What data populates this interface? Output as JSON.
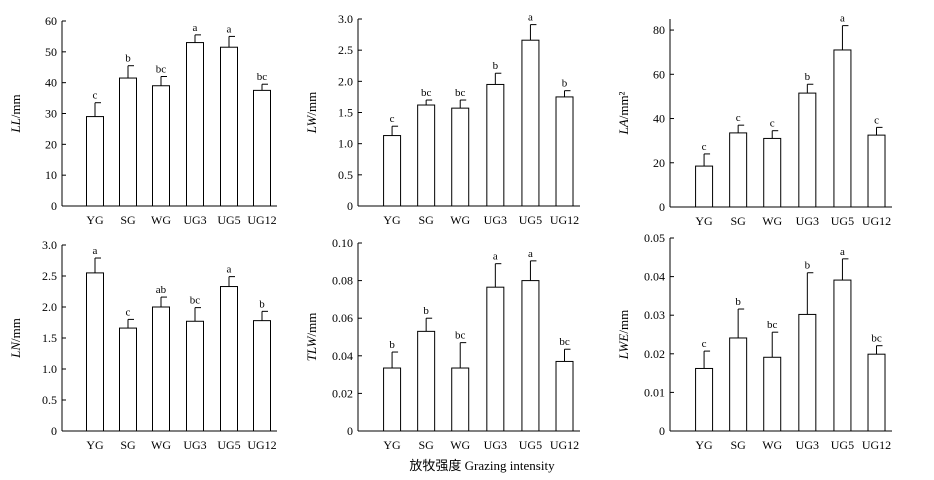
{
  "xlabel": "放牧强度 Grazing intensity",
  "chart_data": [
    {
      "type": "bar",
      "ylabel_italic": "LL",
      "ylabel_unit": "/mm",
      "categories": [
        "YG",
        "SG",
        "WG",
        "UG3",
        "UG5",
        "UG12"
      ],
      "values": [
        29,
        41.5,
        39,
        53,
        51.5,
        37.5
      ],
      "errors": [
        4.5,
        4,
        3,
        2.5,
        3.5,
        2
      ],
      "letters": [
        "c",
        "b",
        "bc",
        "a",
        "a",
        "bc"
      ],
      "ylim": [
        0,
        60
      ],
      "yticks": [
        "0",
        "10",
        "20",
        "30",
        "40",
        "50",
        "60"
      ]
    },
    {
      "type": "bar",
      "ylabel_italic": "LW",
      "ylabel_unit": "/mm",
      "categories": [
        "YG",
        "SG",
        "WG",
        "UG3",
        "UG5",
        "UG12"
      ],
      "values": [
        1.13,
        1.62,
        1.57,
        1.95,
        2.66,
        1.75
      ],
      "errors": [
        0.15,
        0.08,
        0.13,
        0.18,
        0.25,
        0.1
      ],
      "letters": [
        "c",
        "bc",
        "bc",
        "b",
        "a",
        "b"
      ],
      "ylim": [
        0,
        3.0
      ],
      "yticks": [
        "0",
        "0.5",
        "1.0",
        "1.5",
        "2.0",
        "2.5",
        "3.0"
      ]
    },
    {
      "type": "bar",
      "ylabel_italic": "LA",
      "ylabel_unit": "/mm²",
      "categories": [
        "YG",
        "SG",
        "WG",
        "UG3",
        "UG5",
        "UG12"
      ],
      "values": [
        18.5,
        33.5,
        31,
        51.5,
        71,
        32.5
      ],
      "errors": [
        5.5,
        3.5,
        3.5,
        4,
        11,
        3.5
      ],
      "letters": [
        "c",
        "c",
        "c",
        "b",
        "a",
        "c"
      ],
      "ylim": [
        0,
        85
      ],
      "yticks": [
        "0",
        "20",
        "40",
        "60",
        "80"
      ]
    },
    {
      "type": "bar",
      "ylabel_italic": "LN",
      "ylabel_unit": "/mm",
      "categories": [
        "YG",
        "SG",
        "WG",
        "UG3",
        "UG5",
        "UG12"
      ],
      "values": [
        2.55,
        1.66,
        2.0,
        1.77,
        2.33,
        1.78
      ],
      "errors": [
        0.24,
        0.14,
        0.16,
        0.22,
        0.16,
        0.15
      ],
      "letters": [
        "a",
        "c",
        "ab",
        "bc",
        "a",
        "b"
      ],
      "ylim": [
        0,
        3.0
      ],
      "yticks": [
        "0",
        "0.5",
        "1.0",
        "1.5",
        "2.0",
        "2.5",
        "3.0"
      ]
    },
    {
      "type": "bar",
      "ylabel_italic": "TLW",
      "ylabel_unit": "/mm",
      "categories": [
        "YG",
        "SG",
        "WG",
        "UG3",
        "UG5",
        "UG12"
      ],
      "values": [
        0.0335,
        0.053,
        0.0335,
        0.0765,
        0.08,
        0.037
      ],
      "errors": [
        0.0085,
        0.007,
        0.0135,
        0.0125,
        0.0105,
        0.0065
      ],
      "letters": [
        "b",
        "b",
        "bc",
        "a",
        "a",
        "bc"
      ],
      "ylim": [
        0,
        0.1
      ],
      "yticks": [
        "0",
        "0.02",
        "0.04",
        "0.06",
        "0.08",
        "0.10"
      ]
    },
    {
      "type": "bar",
      "ylabel_italic": "LWE",
      "ylabel_unit": "/mm",
      "categories": [
        "YG",
        "SG",
        "WG",
        "UG3",
        "UG5",
        "UG12"
      ],
      "values": [
        0.0162,
        0.0241,
        0.0191,
        0.0302,
        0.0391,
        0.0199
      ],
      "errors": [
        0.0045,
        0.0075,
        0.0065,
        0.0108,
        0.0055,
        0.0022
      ],
      "letters": [
        "c",
        "b",
        "bc",
        "b",
        "a",
        "bc"
      ],
      "ylim": [
        0,
        0.05
      ],
      "yticks": [
        "0",
        "0.01",
        "0.02",
        "0.03",
        "0.04",
        "0.05"
      ]
    }
  ]
}
